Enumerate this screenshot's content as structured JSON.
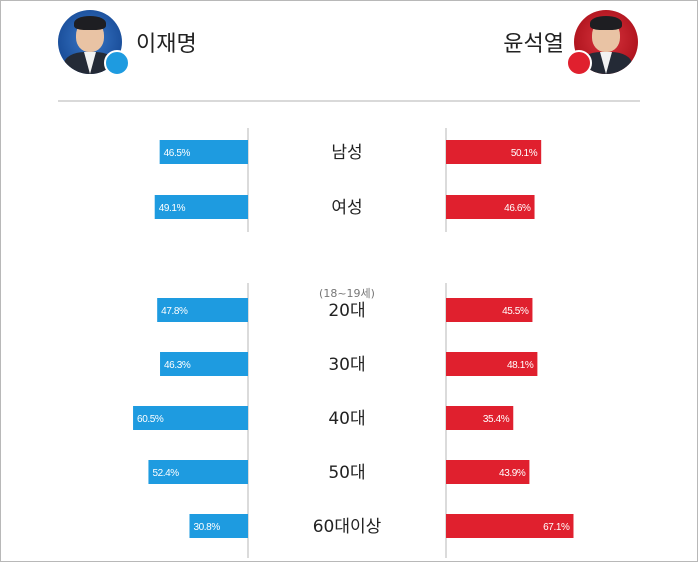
{
  "candidates": {
    "left": {
      "name": "이재명",
      "color": "#1e9be0",
      "photo_icon": "portrait-icon"
    },
    "right": {
      "name": "윤석열",
      "color": "#e0202e",
      "photo_icon": "portrait-icon"
    }
  },
  "chart_data": [
    {
      "type": "bar",
      "orientation": "horizontal-diverging",
      "title": "",
      "categories": [
        "남성",
        "여성"
      ],
      "series": [
        {
          "name": "이재명",
          "values": [
            46.5,
            49.1
          ],
          "labels": [
            "46.5%",
            "49.1%"
          ],
          "color": "#1e9be0",
          "direction": "left"
        },
        {
          "name": "윤석열",
          "values": [
            50.1,
            46.6
          ],
          "labels": [
            "50.1%",
            "46.6%"
          ],
          "color": "#e0202e",
          "direction": "right"
        }
      ]
    },
    {
      "type": "bar",
      "orientation": "horizontal-diverging",
      "title": "",
      "categories": [
        "20대",
        "30대",
        "40대",
        "50대",
        "60대이상"
      ],
      "category_notes": [
        "(18~19세)",
        "",
        "",
        "",
        ""
      ],
      "series": [
        {
          "name": "이재명",
          "values": [
            47.8,
            46.3,
            60.5,
            52.4,
            30.8
          ],
          "labels": [
            "47.8%",
            "46.3%",
            "60.5%",
            "52.4%",
            "30.8%"
          ],
          "color": "#1e9be0",
          "direction": "left"
        },
        {
          "name": "윤석열",
          "values": [
            45.5,
            48.1,
            35.4,
            43.9,
            67.1
          ],
          "labels": [
            "45.5%",
            "48.1%",
            "35.4%",
            "43.9%",
            "67.1%"
          ],
          "color": "#e0202e",
          "direction": "right"
        }
      ]
    }
  ]
}
